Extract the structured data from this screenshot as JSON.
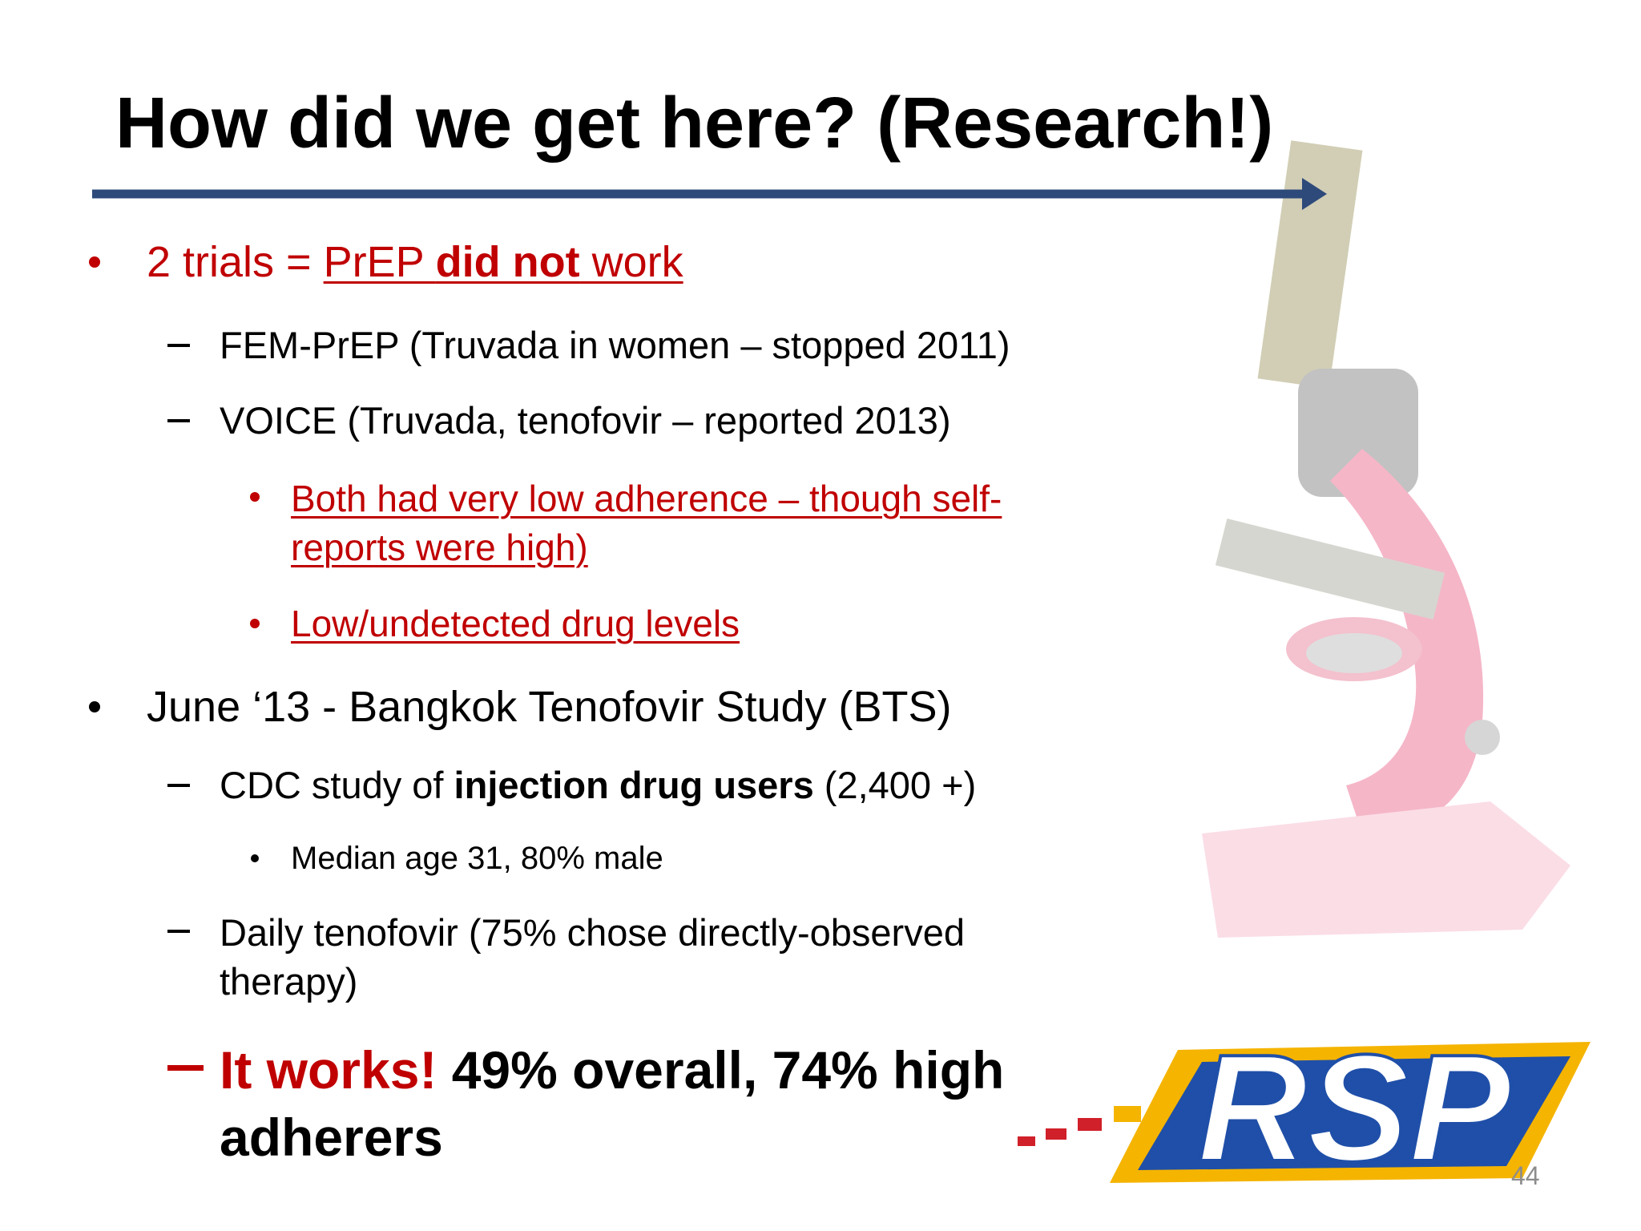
{
  "slide": {
    "title": "How did we get here? (Research!)",
    "items": [
      {
        "runs": [
          "2 trials = ",
          "PrEP ",
          "did not",
          " work"
        ]
      },
      {
        "runs": [
          "FEM-PrEP (Truvada in women – stopped 2011)"
        ]
      },
      {
        "runs": [
          "VOICE (Truvada, tenofovir – reported 2013)"
        ]
      },
      {
        "runs": [
          "Both had very low adherence – though self-reports were high)"
        ]
      },
      {
        "runs": [
          "Low/undetected drug levels"
        ]
      },
      {
        "runs": [
          "June ‘13 - Bangkok Tenofovir Study (BTS)"
        ]
      },
      {
        "runs": [
          "CDC study of ",
          "injection drug users",
          " (2,400 +)"
        ]
      },
      {
        "runs": [
          "Median age 31, 80% male"
        ]
      },
      {
        "runs": [
          "Daily tenofovir (75% chose directly-observed therapy)"
        ]
      },
      {
        "runs": [
          "It works!",
          " 49% overall, 74% high adherers"
        ]
      }
    ],
    "logo": "RSP",
    "page_number": 44
  }
}
